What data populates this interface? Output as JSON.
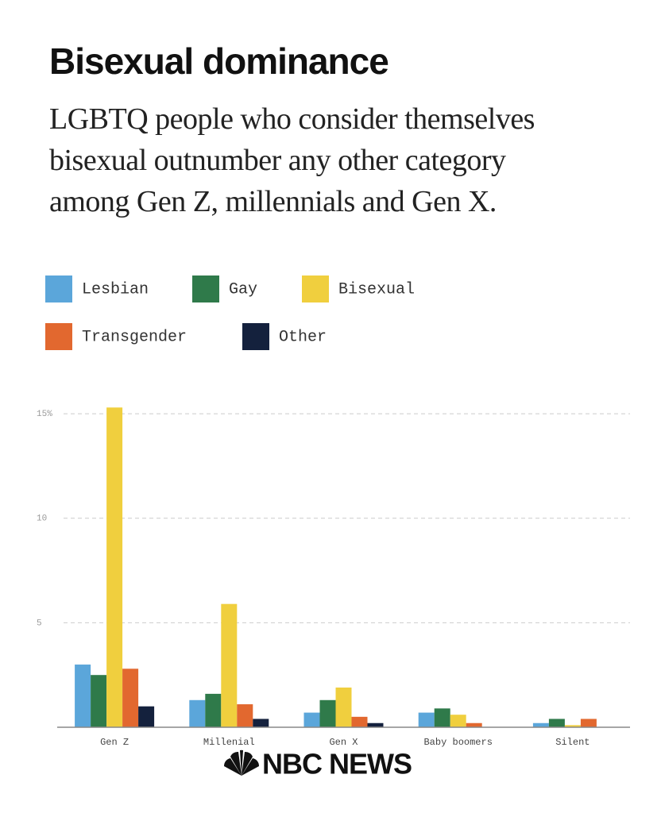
{
  "chart_data": {
    "type": "bar",
    "title": "Bisexual dominance",
    "subtitle": "LGBTQ people who consider themselves bisexual outnumber any other category among Gen Z, millennials and Gen X.",
    "categories": [
      "Gen Z",
      "Millenial",
      "Gen X",
      "Baby boomers",
      "Silent"
    ],
    "series": [
      {
        "name": "Lesbian",
        "color": "#5ba6da",
        "values": [
          3.0,
          1.3,
          0.7,
          0.7,
          0.2
        ]
      },
      {
        "name": "Gay",
        "color": "#2f7a4a",
        "values": [
          2.5,
          1.6,
          1.3,
          0.9,
          0.4
        ]
      },
      {
        "name": "Bisexual",
        "color": "#f0cf3e",
        "values": [
          15.3,
          5.9,
          1.9,
          0.6,
          0.1
        ]
      },
      {
        "name": "Transgender",
        "color": "#e2682f",
        "values": [
          2.8,
          1.1,
          0.5,
          0.2,
          0.4
        ]
      },
      {
        "name": "Other",
        "color": "#14213d",
        "values": [
          1.0,
          0.4,
          0.2,
          0,
          0
        ]
      }
    ],
    "ylim": [
      0,
      15.5
    ],
    "yticks": [
      {
        "value": 15,
        "label": "15%"
      },
      10,
      5
    ],
    "grid": true,
    "source": "NBC NEWS"
  }
}
